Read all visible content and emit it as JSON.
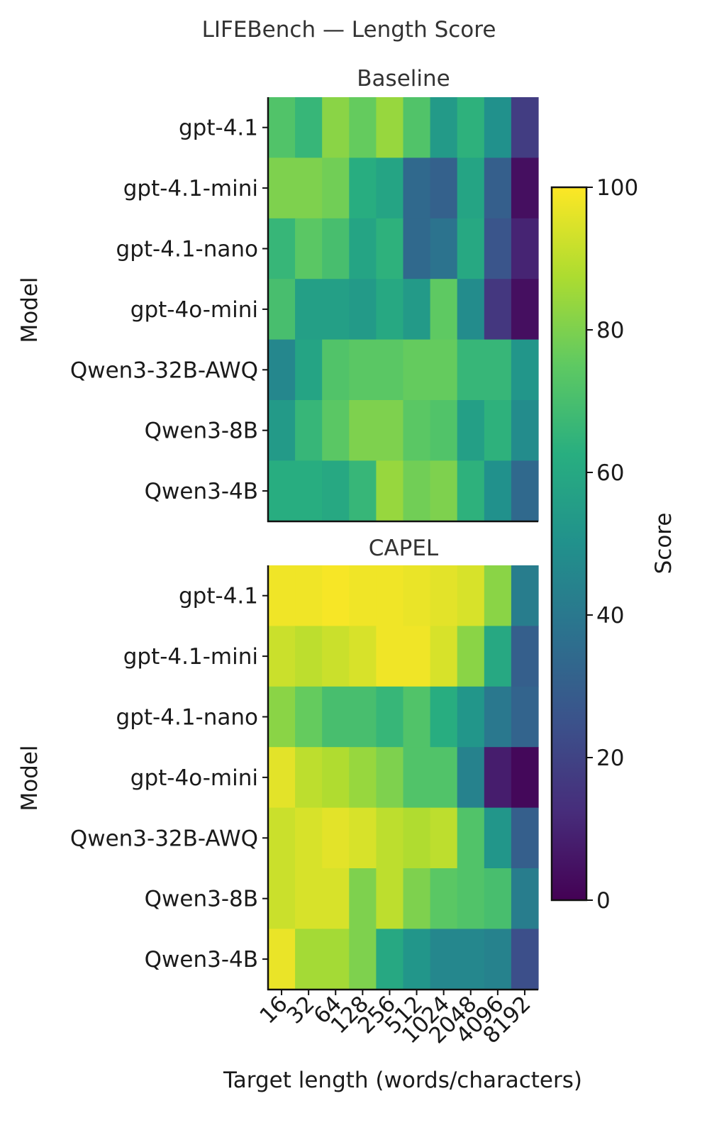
{
  "chart_data": {
    "type": "heatmap",
    "title": "LIFEBench — Length Score",
    "xlabel": "Target length (words/characters)",
    "x_ticks": [
      "16",
      "32",
      "64",
      "128",
      "256",
      "512",
      "1024",
      "2048",
      "4096",
      "8192"
    ],
    "colorbar": {
      "label": "Score",
      "range": [
        0,
        100
      ],
      "ticks": [
        "0",
        "20",
        "40",
        "60",
        "80",
        "100"
      ],
      "colormap": "viridis"
    },
    "panels": [
      {
        "title": "Baseline",
        "ylabel": "Model",
        "models": [
          "gpt-4.1",
          "gpt-4.1-mini",
          "gpt-4.1-nano",
          "gpt-4o-mini",
          "Qwen3-32B-AWQ",
          "Qwen3-8B",
          "Qwen3-4B"
        ],
        "values": [
          [
            72,
            66,
            82,
            76,
            84,
            72,
            54,
            64,
            50,
            18
          ],
          [
            80,
            80,
            78,
            62,
            58,
            34,
            31,
            58,
            30,
            4
          ],
          [
            66,
            74,
            70,
            58,
            64,
            34,
            38,
            60,
            26,
            10
          ],
          [
            70,
            56,
            56,
            54,
            60,
            54,
            75,
            48,
            16,
            4
          ],
          [
            46,
            58,
            72,
            74,
            74,
            76,
            76,
            66,
            66,
            52
          ],
          [
            54,
            66,
            74,
            80,
            80,
            74,
            72,
            56,
            64,
            48
          ],
          [
            62,
            62,
            60,
            66,
            84,
            78,
            80,
            64,
            50,
            34
          ]
        ]
      },
      {
        "title": "CAPEL",
        "ylabel": "Model",
        "models": [
          "gpt-4.1",
          "gpt-4.1-mini",
          "gpt-4.1-nano",
          "gpt-4o-mini",
          "Qwen3-32B-AWQ",
          "Qwen3-8B",
          "Qwen3-4B"
        ],
        "values": [
          [
            98,
            98,
            99,
            98,
            98,
            97,
            96,
            94,
            82,
            42
          ],
          [
            92,
            90,
            92,
            94,
            98,
            98,
            94,
            82,
            60,
            30
          ],
          [
            82,
            76,
            70,
            70,
            66,
            72,
            62,
            52,
            40,
            32
          ],
          [
            96,
            90,
            88,
            84,
            80,
            72,
            72,
            44,
            8,
            2
          ],
          [
            92,
            94,
            96,
            94,
            90,
            88,
            90,
            72,
            52,
            30
          ],
          [
            92,
            94,
            94,
            80,
            90,
            80,
            74,
            72,
            70,
            42
          ],
          [
            97,
            86,
            86,
            80,
            60,
            52,
            46,
            46,
            44,
            24
          ]
        ]
      }
    ]
  }
}
